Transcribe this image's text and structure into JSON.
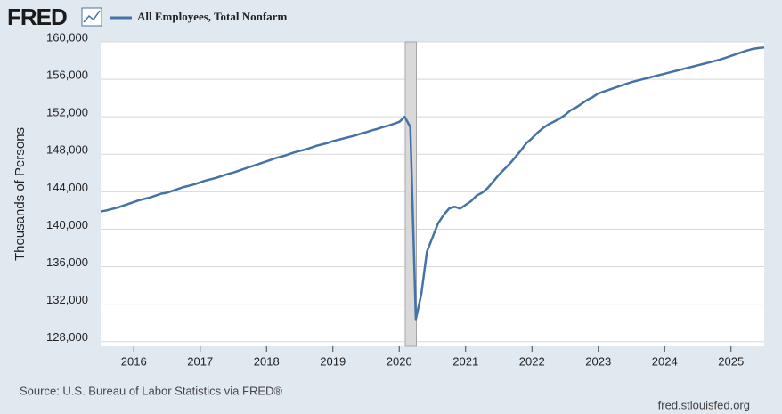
{
  "brand": "FRED",
  "footer": {
    "source": "Source: U.S. Bureau of Labor Statistics via FRED®",
    "site": "fred.stlouisfed.org"
  },
  "chart_data": {
    "type": "line",
    "ylabel": "Thousands of Persons",
    "x": [
      2015.5,
      2015.583,
      2015.667,
      2015.75,
      2015.833,
      2015.917,
      2016,
      2016.083,
      2016.167,
      2016.25,
      2016.333,
      2016.417,
      2016.5,
      2016.583,
      2016.667,
      2016.75,
      2016.833,
      2016.917,
      2017,
      2017.083,
      2017.167,
      2017.25,
      2017.333,
      2017.417,
      2017.5,
      2017.583,
      2017.667,
      2017.75,
      2017.833,
      2017.917,
      2018,
      2018.083,
      2018.167,
      2018.25,
      2018.333,
      2018.417,
      2018.5,
      2018.583,
      2018.667,
      2018.75,
      2018.833,
      2018.917,
      2019,
      2019.083,
      2019.167,
      2019.25,
      2019.333,
      2019.417,
      2019.5,
      2019.583,
      2019.667,
      2019.75,
      2019.833,
      2019.917,
      2020,
      2020.083,
      2020.167,
      2020.25,
      2020.333,
      2020.417,
      2020.5,
      2020.583,
      2020.667,
      2020.75,
      2020.833,
      2020.917,
      2021,
      2021.083,
      2021.167,
      2021.25,
      2021.333,
      2021.417,
      2021.5,
      2021.583,
      2021.667,
      2021.75,
      2021.833,
      2021.917,
      2022,
      2022.083,
      2022.167,
      2022.25,
      2022.333,
      2022.417,
      2022.5,
      2022.583,
      2022.667,
      2022.75,
      2022.833,
      2022.917,
      2023,
      2023.083,
      2023.167,
      2023.25,
      2023.333,
      2023.417,
      2023.5,
      2023.583,
      2023.667,
      2023.75,
      2023.833,
      2023.917,
      2024,
      2024.083,
      2024.167,
      2024.25,
      2024.333,
      2024.417,
      2024.5,
      2024.583,
      2024.667,
      2024.75,
      2024.833,
      2024.917,
      2025,
      2025.083,
      2025.167,
      2025.25,
      2025.333,
      2025.417,
      2025.5
    ],
    "series": [
      {
        "name": "All Employees, Total Nonfarm",
        "color": "#4572a7",
        "values": [
          141900,
          142000,
          142150,
          142300,
          142500,
          142700,
          142900,
          143100,
          143250,
          143400,
          143600,
          143800,
          143900,
          144100,
          144300,
          144500,
          144650,
          144800,
          145000,
          145200,
          145350,
          145500,
          145700,
          145900,
          146050,
          146250,
          146450,
          146650,
          146850,
          147050,
          147250,
          147450,
          147650,
          147800,
          148000,
          148200,
          148350,
          148500,
          148700,
          148900,
          149050,
          149200,
          149400,
          149550,
          149700,
          149850,
          150000,
          150200,
          150350,
          150550,
          150700,
          150900,
          151050,
          151250,
          151450,
          152000,
          150900,
          130400,
          133100,
          137600,
          139100,
          140600,
          141500,
          142200,
          142400,
          142200,
          142600,
          143000,
          143600,
          143900,
          144400,
          145100,
          145800,
          146400,
          147000,
          147700,
          148400,
          149200,
          149700,
          150300,
          150800,
          151200,
          151500,
          151800,
          152200,
          152700,
          153000,
          153400,
          153800,
          154100,
          154500,
          154700,
          154900,
          155100,
          155300,
          155500,
          155700,
          155850,
          156000,
          156150,
          156300,
          156450,
          156600,
          156750,
          156900,
          157050,
          157200,
          157350,
          157500,
          157650,
          157800,
          157950,
          158100,
          158300,
          158500,
          158700,
          158900,
          159100,
          159250,
          159350,
          159400
        ]
      }
    ],
    "shading": [
      [
        2020.09,
        2020.26
      ]
    ],
    "shading_color": "#d9d9d9",
    "xlim": [
      2015.5,
      2025.5
    ],
    "xticks": [
      2016,
      2017,
      2018,
      2019,
      2020,
      2021,
      2022,
      2023,
      2024,
      2025
    ],
    "ylim": [
      127500,
      160000
    ],
    "yticks": [
      {
        "value": 128000,
        "label": "128,000"
      },
      {
        "value": 132000,
        "label": "132,000"
      },
      {
        "value": 136000,
        "label": "136,000"
      },
      {
        "value": 140000,
        "label": "140,000"
      },
      {
        "value": 144000,
        "label": "144,000"
      },
      {
        "value": 148000,
        "label": "148,000"
      },
      {
        "value": 152000,
        "label": "152,000"
      },
      {
        "value": 156000,
        "label": "156,000"
      },
      {
        "value": 160000,
        "label": "160,000"
      }
    ],
    "grid": true
  }
}
